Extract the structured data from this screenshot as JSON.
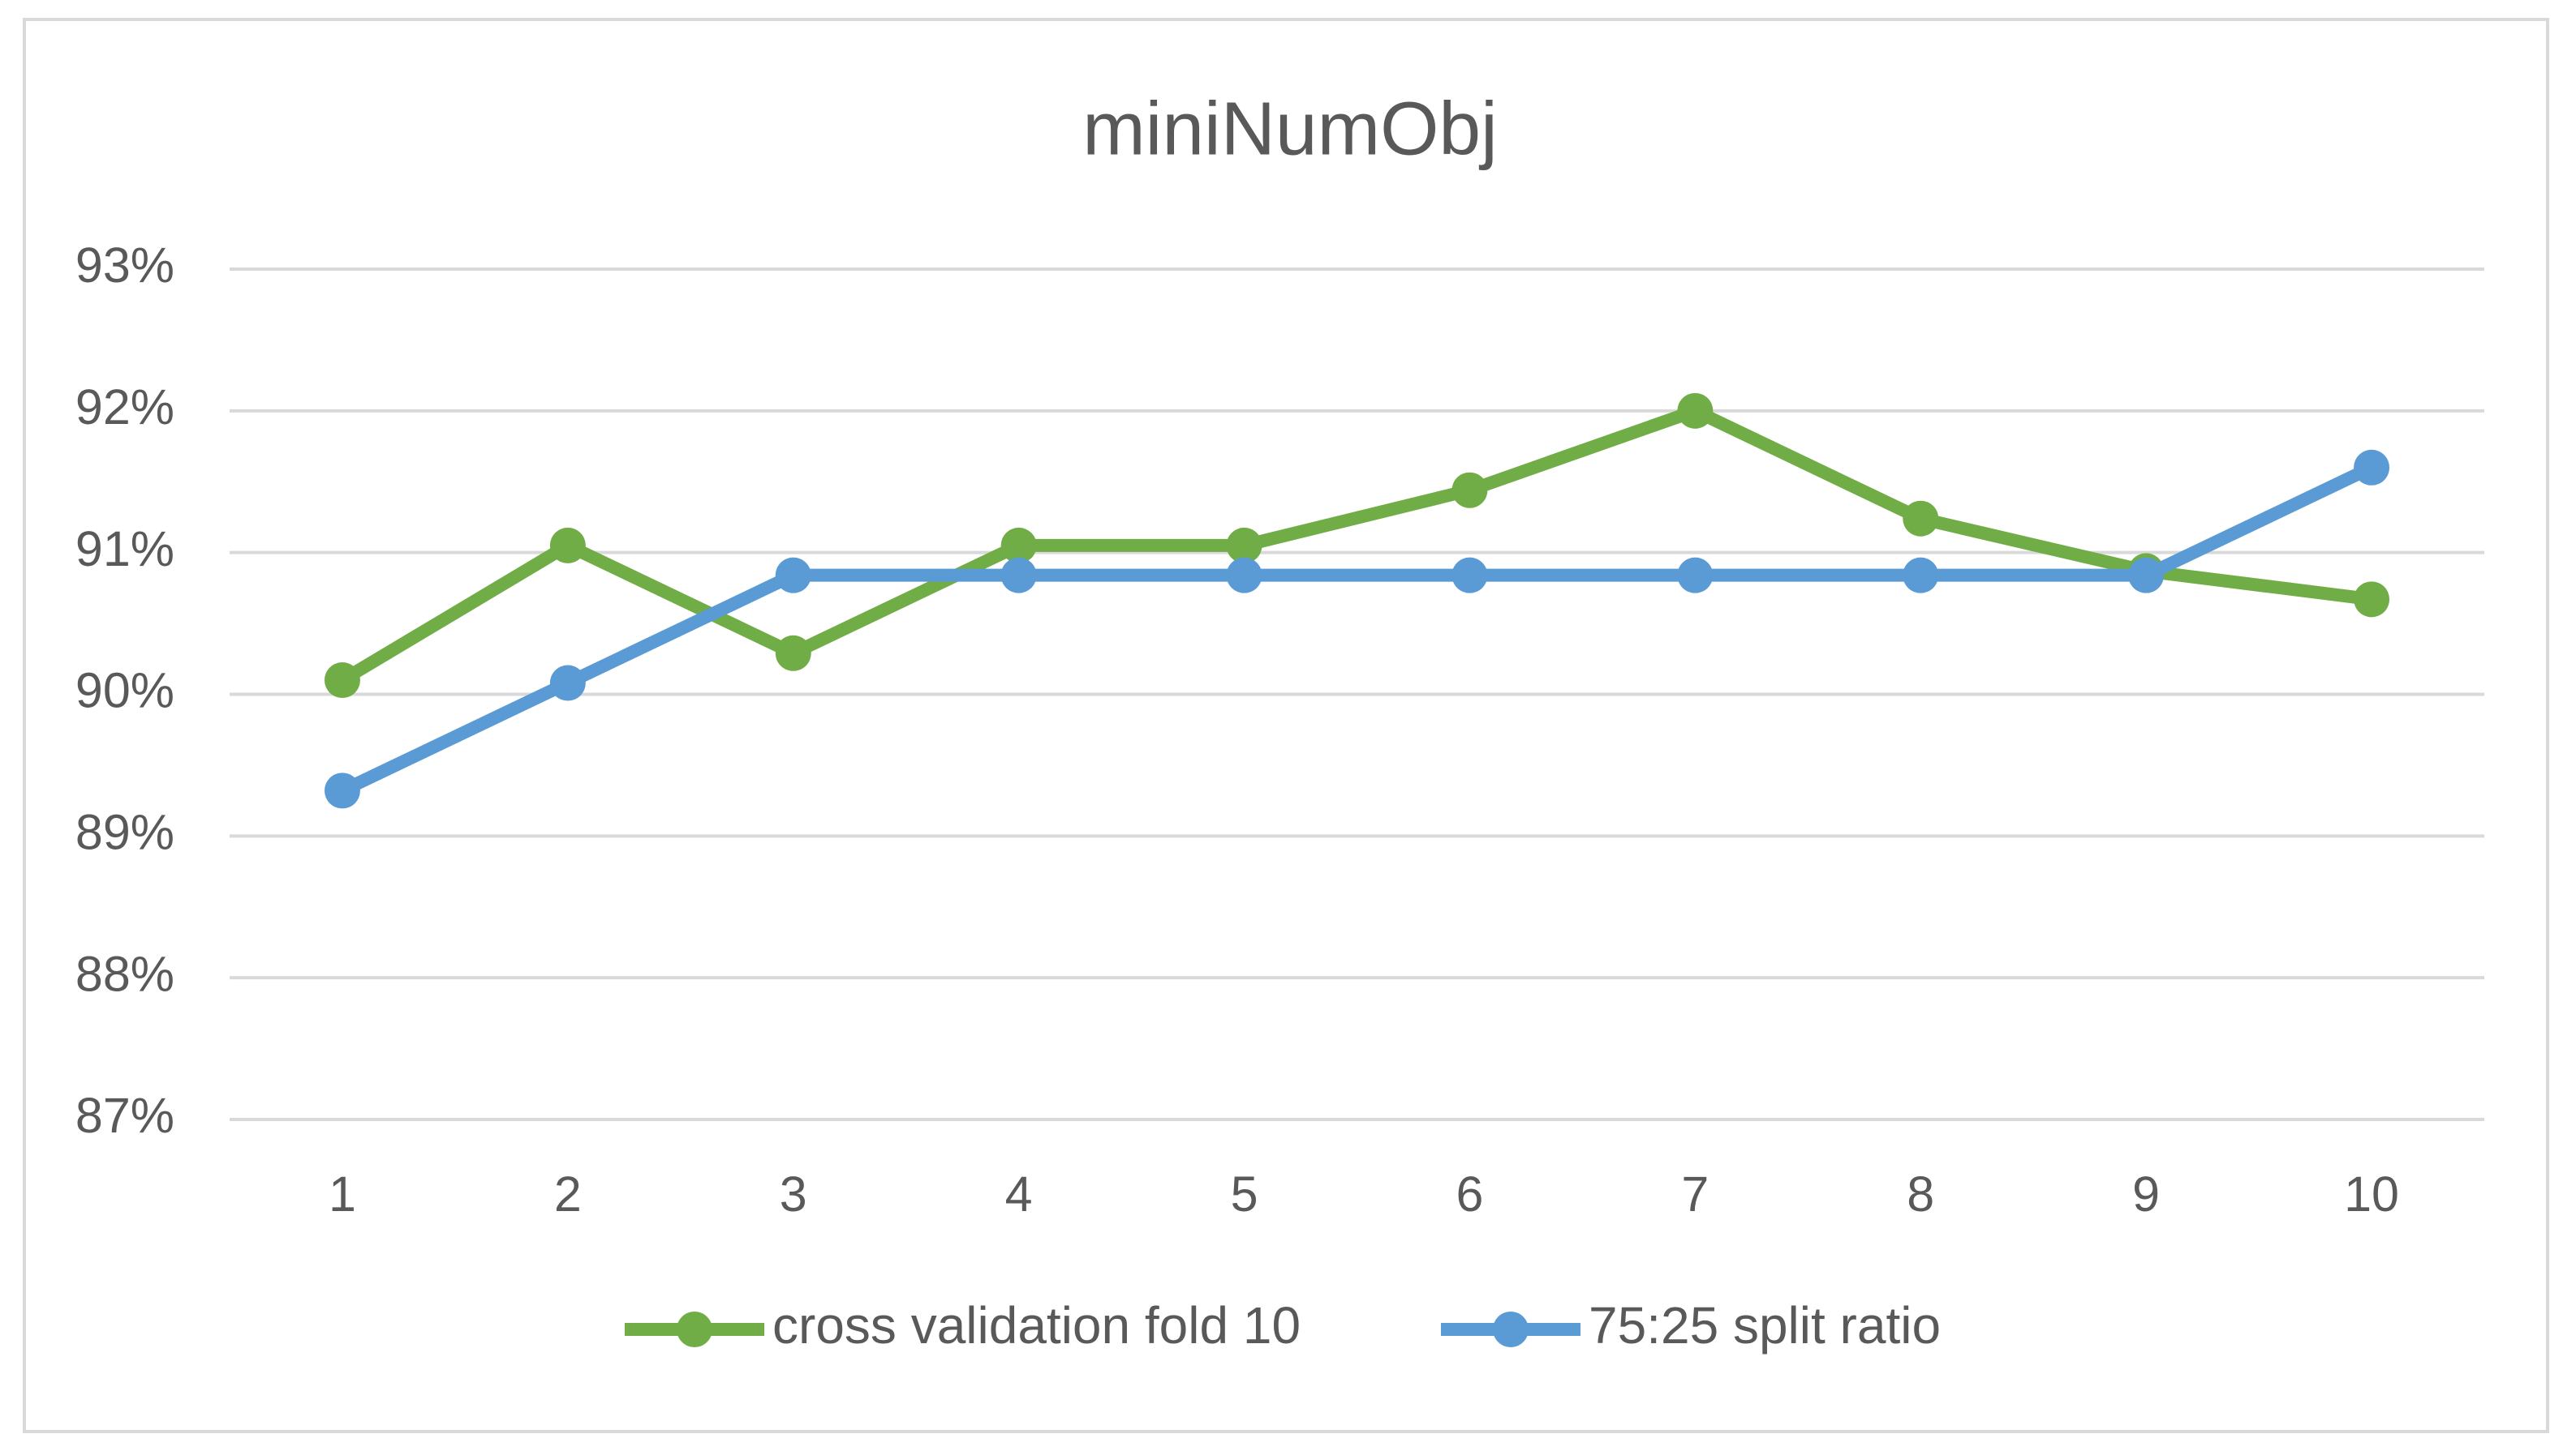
{
  "chart_data": {
    "type": "line",
    "title": "miniNumObj",
    "categories": [
      "1",
      "2",
      "3",
      "4",
      "5",
      "6",
      "7",
      "8",
      "9",
      "10"
    ],
    "series": [
      {
        "name": "cross validation fold 10",
        "color": "#70ad47",
        "values": [
          90.1,
          91.05,
          90.29,
          91.05,
          91.05,
          91.44,
          92.0,
          91.24,
          90.87,
          90.67
        ]
      },
      {
        "name": "75:25 split ratio",
        "color": "#5b9bd5",
        "values": [
          89.32,
          90.08,
          90.84,
          90.84,
          90.84,
          90.84,
          90.84,
          90.84,
          90.84,
          91.6
        ]
      }
    ],
    "ylim": [
      87,
      93
    ],
    "yticks": [
      {
        "value": 87,
        "label": "87%"
      },
      {
        "value": 88,
        "label": "88%"
      },
      {
        "value": 89,
        "label": "89%"
      },
      {
        "value": 90,
        "label": "90%"
      },
      {
        "value": 91,
        "label": "91%"
      },
      {
        "value": 92,
        "label": "92%"
      },
      {
        "value": 93,
        "label": "93%"
      }
    ],
    "grid": true,
    "legend": "bottom"
  }
}
